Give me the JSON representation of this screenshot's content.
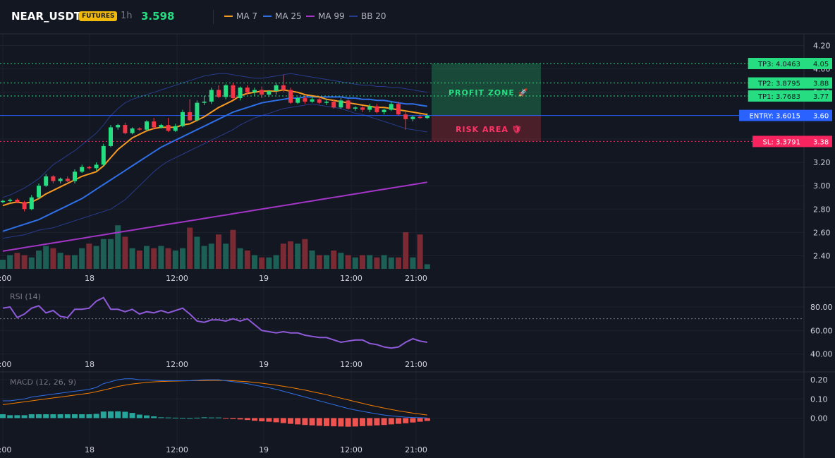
{
  "header": {
    "symbol": "NEAR_USDT",
    "badge": "FUTURES",
    "interval": "1h",
    "last_price": "3.598",
    "legend": [
      {
        "label": "MA 7",
        "color": "#f59a23"
      },
      {
        "label": "MA 25",
        "color": "#2f6fe6"
      },
      {
        "label": "MA 99",
        "color": "#a335c7"
      },
      {
        "label": "BB 20",
        "color": "#283b8a"
      }
    ]
  },
  "colors": {
    "up": "#26de81",
    "down": "#f23645",
    "vol_up": "#1e5f55",
    "vol_down": "#7a2a33",
    "grid": "#1e222d",
    "tp": "#26de81",
    "entry": "#2962ff",
    "sl": "#f7245f",
    "rsi": "#8e5ad9",
    "macd": "#2f6fe6",
    "signal": "#f57c00",
    "hist_up": "#26a69a",
    "hist_down": "#ef5350"
  },
  "levels": {
    "tp3": {
      "label": "TP3: 4.0463",
      "axis": "4.05",
      "value": 4.0463
    },
    "tp2": {
      "label": "TP2: 3.8795",
      "axis": "3.88",
      "value": 3.8795
    },
    "tp1": {
      "label": "TP1: 3.7683",
      "axis": "3.77",
      "value": 3.7683
    },
    "entry": {
      "label": "ENTRY: 3.6015",
      "axis": "3.60",
      "value": 3.6015
    },
    "sl": {
      "label": "SL: 3.3791",
      "axis": "3.38",
      "value": 3.3791
    }
  },
  "zones": {
    "profit": "PROFIT ZONE 🚀",
    "risk": "RISK AREA 🛡"
  },
  "panes": {
    "rsi_title": "RSI (14)",
    "macd_title": "MACD (12, 26, 9)"
  },
  "chart_data": [
    {
      "type": "candlestick",
      "title": "NEAR_USDT",
      "yticks": [
        4.2,
        4.0,
        3.8,
        3.6,
        3.4,
        3.2,
        3.0,
        2.8,
        2.6,
        2.4
      ],
      "ylim": [
        2.27,
        4.3
      ],
      "x_tick_labels": [
        "2:00",
        "18",
        "12:00",
        "19",
        "12:00",
        "21:00"
      ],
      "x_tick_index": [
        0,
        12,
        24,
        36,
        48,
        57
      ],
      "ohlc": [
        [
          2.86,
          2.88,
          2.85,
          2.87
        ],
        [
          2.87,
          2.89,
          2.86,
          2.88
        ],
        [
          2.88,
          2.89,
          2.85,
          2.86
        ],
        [
          2.86,
          2.87,
          2.78,
          2.8
        ],
        [
          2.8,
          2.92,
          2.79,
          2.9
        ],
        [
          2.9,
          3.02,
          2.89,
          3.0
        ],
        [
          3.0,
          3.1,
          2.99,
          3.08
        ],
        [
          3.08,
          3.09,
          3.02,
          3.04
        ],
        [
          3.04,
          3.07,
          3.02,
          3.06
        ],
        [
          3.06,
          3.08,
          3.03,
          3.04
        ],
        [
          3.04,
          3.14,
          3.02,
          3.12
        ],
        [
          3.12,
          3.18,
          3.11,
          3.16
        ],
        [
          3.16,
          3.17,
          3.14,
          3.15
        ],
        [
          3.15,
          3.2,
          3.13,
          3.18
        ],
        [
          3.18,
          3.36,
          3.17,
          3.34
        ],
        [
          3.34,
          3.52,
          3.33,
          3.5
        ],
        [
          3.5,
          3.53,
          3.48,
          3.52
        ],
        [
          3.52,
          3.54,
          3.44,
          3.45
        ],
        [
          3.45,
          3.5,
          3.44,
          3.49
        ],
        [
          3.49,
          3.5,
          3.47,
          3.48
        ],
        [
          3.48,
          3.56,
          3.47,
          3.55
        ],
        [
          3.55,
          3.58,
          3.48,
          3.5
        ],
        [
          3.5,
          3.53,
          3.49,
          3.52
        ],
        [
          3.52,
          3.58,
          3.46,
          3.47
        ],
        [
          3.47,
          3.53,
          3.46,
          3.51
        ],
        [
          3.51,
          3.65,
          3.5,
          3.63
        ],
        [
          3.63,
          3.74,
          3.55,
          3.56
        ],
        [
          3.56,
          3.73,
          3.55,
          3.71
        ],
        [
          3.71,
          3.77,
          3.69,
          3.72
        ],
        [
          3.72,
          3.84,
          3.7,
          3.82
        ],
        [
          3.82,
          3.86,
          3.75,
          3.76
        ],
        [
          3.76,
          3.87,
          3.74,
          3.86
        ],
        [
          3.86,
          3.88,
          3.74,
          3.75
        ],
        [
          3.75,
          3.85,
          3.73,
          3.84
        ],
        [
          3.84,
          3.86,
          3.78,
          3.8
        ],
        [
          3.8,
          3.84,
          3.77,
          3.82
        ],
        [
          3.82,
          3.85,
          3.75,
          3.78
        ],
        [
          3.78,
          3.82,
          3.76,
          3.81
        ],
        [
          3.81,
          3.88,
          3.78,
          3.86
        ],
        [
          3.86,
          3.95,
          3.8,
          3.82
        ],
        [
          3.82,
          3.84,
          3.7,
          3.71
        ],
        [
          3.71,
          3.76,
          3.7,
          3.75
        ],
        [
          3.75,
          3.77,
          3.7,
          3.72
        ],
        [
          3.72,
          3.76,
          3.71,
          3.74
        ],
        [
          3.74,
          3.75,
          3.7,
          3.71
        ],
        [
          3.71,
          3.74,
          3.69,
          3.72
        ],
        [
          3.72,
          3.74,
          3.66,
          3.67
        ],
        [
          3.67,
          3.75,
          3.66,
          3.73
        ],
        [
          3.73,
          3.74,
          3.65,
          3.66
        ],
        [
          3.66,
          3.68,
          3.64,
          3.67
        ],
        [
          3.67,
          3.68,
          3.63,
          3.65
        ],
        [
          3.65,
          3.7,
          3.63,
          3.68
        ],
        [
          3.68,
          3.7,
          3.62,
          3.63
        ],
        [
          3.63,
          3.66,
          3.61,
          3.65
        ],
        [
          3.65,
          3.72,
          3.64,
          3.7
        ],
        [
          3.7,
          3.72,
          3.6,
          3.61
        ],
        [
          3.61,
          3.63,
          3.48,
          3.57
        ],
        [
          3.57,
          3.6,
          3.55,
          3.59
        ],
        [
          3.59,
          3.61,
          3.57,
          3.58
        ],
        [
          3.58,
          3.62,
          3.57,
          3.6
        ]
      ],
      "volume_rel": [
        0.2,
        0.3,
        0.35,
        0.3,
        0.25,
        0.4,
        0.5,
        0.45,
        0.35,
        0.3,
        0.3,
        0.45,
        0.55,
        0.5,
        0.65,
        0.65,
        0.95,
        0.7,
        0.45,
        0.4,
        0.5,
        0.45,
        0.5,
        0.45,
        0.4,
        0.45,
        0.9,
        0.7,
        0.5,
        0.55,
        0.75,
        0.55,
        0.85,
        0.45,
        0.4,
        0.3,
        0.25,
        0.25,
        0.3,
        0.55,
        0.6,
        0.55,
        0.65,
        0.4,
        0.3,
        0.3,
        0.4,
        0.35,
        0.3,
        0.25,
        0.3,
        0.3,
        0.25,
        0.3,
        0.25,
        0.25,
        0.8,
        0.25,
        0.75,
        0.1
      ],
      "ma7": [
        2.83,
        2.85,
        2.86,
        2.85,
        2.86,
        2.89,
        2.93,
        2.96,
        2.99,
        3.02,
        3.05,
        3.08,
        3.1,
        3.12,
        3.17,
        3.24,
        3.31,
        3.36,
        3.41,
        3.44,
        3.47,
        3.49,
        3.5,
        3.5,
        3.5,
        3.52,
        3.53,
        3.56,
        3.59,
        3.63,
        3.67,
        3.7,
        3.73,
        3.77,
        3.79,
        3.8,
        3.81,
        3.81,
        3.81,
        3.82,
        3.81,
        3.8,
        3.78,
        3.77,
        3.76,
        3.74,
        3.73,
        3.72,
        3.71,
        3.7,
        3.69,
        3.68,
        3.67,
        3.67,
        3.66,
        3.65,
        3.64,
        3.63,
        3.62,
        3.61
      ],
      "ma25": [
        2.61,
        2.63,
        2.65,
        2.67,
        2.69,
        2.71,
        2.74,
        2.77,
        2.8,
        2.83,
        2.86,
        2.89,
        2.93,
        2.97,
        3.01,
        3.05,
        3.09,
        3.13,
        3.17,
        3.21,
        3.25,
        3.29,
        3.33,
        3.36,
        3.39,
        3.42,
        3.45,
        3.48,
        3.51,
        3.54,
        3.57,
        3.6,
        3.63,
        3.65,
        3.67,
        3.69,
        3.71,
        3.72,
        3.73,
        3.74,
        3.75,
        3.75,
        3.76,
        3.76,
        3.76,
        3.76,
        3.76,
        3.76,
        3.75,
        3.75,
        3.74,
        3.74,
        3.73,
        3.73,
        3.72,
        3.71,
        3.7,
        3.7,
        3.69,
        3.68
      ],
      "ma99": [
        2.44,
        2.45,
        2.46,
        2.47,
        2.48,
        2.49,
        2.5,
        2.51,
        2.52,
        2.53,
        2.54,
        2.55,
        2.56,
        2.57,
        2.58,
        2.59,
        2.6,
        2.61,
        2.62,
        2.63,
        2.64,
        2.65,
        2.66,
        2.67,
        2.68,
        2.69,
        2.7,
        2.71,
        2.72,
        2.73,
        2.74,
        2.75,
        2.76,
        2.77,
        2.78,
        2.79,
        2.8,
        2.81,
        2.82,
        2.83,
        2.84,
        2.85,
        2.86,
        2.87,
        2.88,
        2.89,
        2.9,
        2.91,
        2.92,
        2.93,
        2.94,
        2.95,
        2.96,
        2.97,
        2.98,
        2.99,
        3.0,
        3.01,
        3.02,
        3.03
      ],
      "bb_upper": [
        2.9,
        2.92,
        2.95,
        2.98,
        3.02,
        3.06,
        3.12,
        3.18,
        3.22,
        3.26,
        3.3,
        3.35,
        3.4,
        3.45,
        3.52,
        3.6,
        3.66,
        3.71,
        3.74,
        3.76,
        3.78,
        3.8,
        3.82,
        3.84,
        3.86,
        3.88,
        3.9,
        3.92,
        3.94,
        3.95,
        3.96,
        3.96,
        3.95,
        3.94,
        3.93,
        3.92,
        3.92,
        3.93,
        3.94,
        3.95,
        3.96,
        3.95,
        3.94,
        3.93,
        3.92,
        3.91,
        3.9,
        3.89,
        3.88,
        3.87,
        3.86,
        3.86,
        3.85,
        3.85,
        3.84,
        3.84,
        3.83,
        3.82,
        3.81,
        3.8
      ],
      "bb_lower": [
        2.55,
        2.56,
        2.57,
        2.58,
        2.6,
        2.62,
        2.63,
        2.64,
        2.66,
        2.68,
        2.7,
        2.72,
        2.74,
        2.76,
        2.78,
        2.8,
        2.84,
        2.88,
        2.94,
        3.0,
        3.06,
        3.12,
        3.17,
        3.21,
        3.24,
        3.27,
        3.3,
        3.33,
        3.36,
        3.39,
        3.42,
        3.45,
        3.48,
        3.52,
        3.55,
        3.58,
        3.6,
        3.62,
        3.64,
        3.66,
        3.67,
        3.68,
        3.69,
        3.7,
        3.69,
        3.68,
        3.67,
        3.66,
        3.64,
        3.62,
        3.61,
        3.59,
        3.57,
        3.55,
        3.53,
        3.51,
        3.49,
        3.48,
        3.47,
        3.46
      ]
    },
    {
      "type": "line",
      "title": "RSI (14)",
      "yticks": [
        80,
        60,
        40
      ],
      "ylim": [
        35,
        95
      ],
      "reference": 70,
      "x_tick_labels": [
        "2:00",
        "18",
        "12:00",
        "19",
        "12:00",
        "21:00"
      ],
      "values": [
        79,
        80,
        71,
        74,
        79,
        81,
        75,
        77,
        72,
        71,
        78,
        78,
        79,
        85,
        88,
        78,
        78,
        76,
        78,
        74,
        76,
        75,
        77,
        75,
        77,
        79,
        74,
        68,
        67,
        69,
        69,
        68,
        70,
        68,
        70,
        65,
        60,
        59,
        58,
        59,
        58,
        58,
        56,
        55,
        54,
        54,
        52,
        50,
        51,
        52,
        52,
        49,
        48,
        46,
        45,
        46,
        50,
        53,
        51,
        50
      ]
    },
    {
      "type": "line",
      "title": "MACD (12, 26, 9)",
      "yticks": [
        0.2,
        0.1,
        0.0
      ],
      "ylim": [
        -0.12,
        0.23
      ],
      "x_tick_labels": [
        "2:00",
        "18",
        "12:00",
        "19",
        "12:00",
        "21:00"
      ],
      "series": [
        {
          "name": "MACD",
          "values": [
            0.09,
            0.09,
            0.095,
            0.1,
            0.11,
            0.115,
            0.12,
            0.125,
            0.13,
            0.135,
            0.14,
            0.145,
            0.15,
            0.16,
            0.18,
            0.19,
            0.2,
            0.205,
            0.205,
            0.2,
            0.2,
            0.198,
            0.195,
            0.195,
            0.195,
            0.195,
            0.195,
            0.198,
            0.2,
            0.2,
            0.2,
            0.195,
            0.19,
            0.185,
            0.18,
            0.172,
            0.165,
            0.158,
            0.15,
            0.14,
            0.13,
            0.12,
            0.11,
            0.1,
            0.09,
            0.08,
            0.07,
            0.06,
            0.05,
            0.042,
            0.035,
            0.028,
            0.022,
            0.016,
            0.012,
            0.008,
            0.005,
            0.003,
            0.002,
            0.001
          ]
        },
        {
          "name": "Signal",
          "values": [
            0.07,
            0.075,
            0.08,
            0.085,
            0.09,
            0.095,
            0.1,
            0.105,
            0.11,
            0.115,
            0.12,
            0.125,
            0.13,
            0.138,
            0.146,
            0.155,
            0.165,
            0.172,
            0.178,
            0.182,
            0.186,
            0.189,
            0.191,
            0.192,
            0.193,
            0.194,
            0.195,
            0.196,
            0.196,
            0.197,
            0.197,
            0.196,
            0.195,
            0.192,
            0.19,
            0.186,
            0.182,
            0.177,
            0.172,
            0.166,
            0.16,
            0.153,
            0.146,
            0.138,
            0.13,
            0.122,
            0.113,
            0.104,
            0.095,
            0.086,
            0.077,
            0.068,
            0.06,
            0.052,
            0.045,
            0.038,
            0.032,
            0.026,
            0.021,
            0.016
          ]
        },
        {
          "name": "Histogram",
          "values": [
            0.02,
            0.015,
            0.015,
            0.015,
            0.02,
            0.02,
            0.02,
            0.02,
            0.02,
            0.02,
            0.02,
            0.02,
            0.02,
            0.022,
            0.034,
            0.035,
            0.035,
            0.033,
            0.027,
            0.018,
            0.014,
            0.009,
            0.004,
            0.003,
            0.002,
            0.001,
            0.0,
            0.002,
            0.004,
            0.003,
            0.003,
            -0.001,
            -0.005,
            -0.007,
            -0.01,
            -0.014,
            -0.017,
            -0.019,
            -0.022,
            -0.026,
            -0.03,
            -0.033,
            -0.036,
            -0.038,
            -0.04,
            -0.042,
            -0.043,
            -0.044,
            -0.045,
            -0.044,
            -0.042,
            -0.04,
            -0.038,
            -0.036,
            -0.033,
            -0.03,
            -0.027,
            -0.023,
            -0.019,
            -0.015
          ]
        }
      ]
    }
  ]
}
